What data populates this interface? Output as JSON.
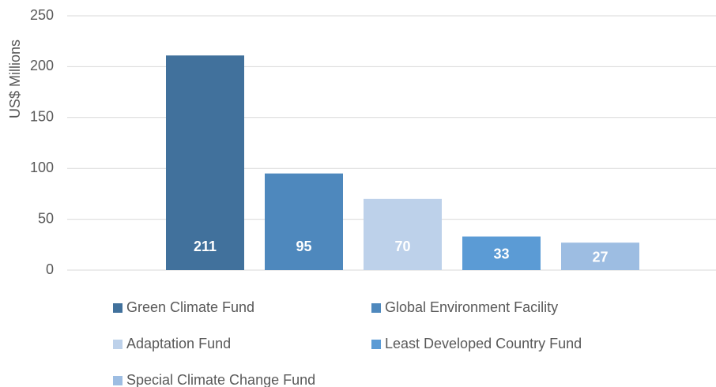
{
  "chart_data": {
    "type": "bar",
    "y_label": "US$ Millions",
    "categories": [
      null
    ],
    "series": [
      {
        "name": "Green Climate Fund",
        "color": "#41719c",
        "values": [
          211
        ]
      },
      {
        "name": "Global Environment Facility",
        "color": "#4e88bd",
        "values": [
          95
        ]
      },
      {
        "name": "Adaptation Fund",
        "color": "#bdd1ea",
        "values": [
          70
        ]
      },
      {
        "name": "Least Developed Country Fund",
        "color": "#5b9bd5",
        "values": [
          33
        ]
      },
      {
        "name": "Special Climate Change Fund",
        "color": "#9dbde2",
        "values": [
          27
        ]
      }
    ],
    "ylim": [
      0,
      250
    ],
    "yticks": [
      0,
      50,
      100,
      150,
      200,
      250
    ],
    "grid": true,
    "legend": "bottom"
  }
}
